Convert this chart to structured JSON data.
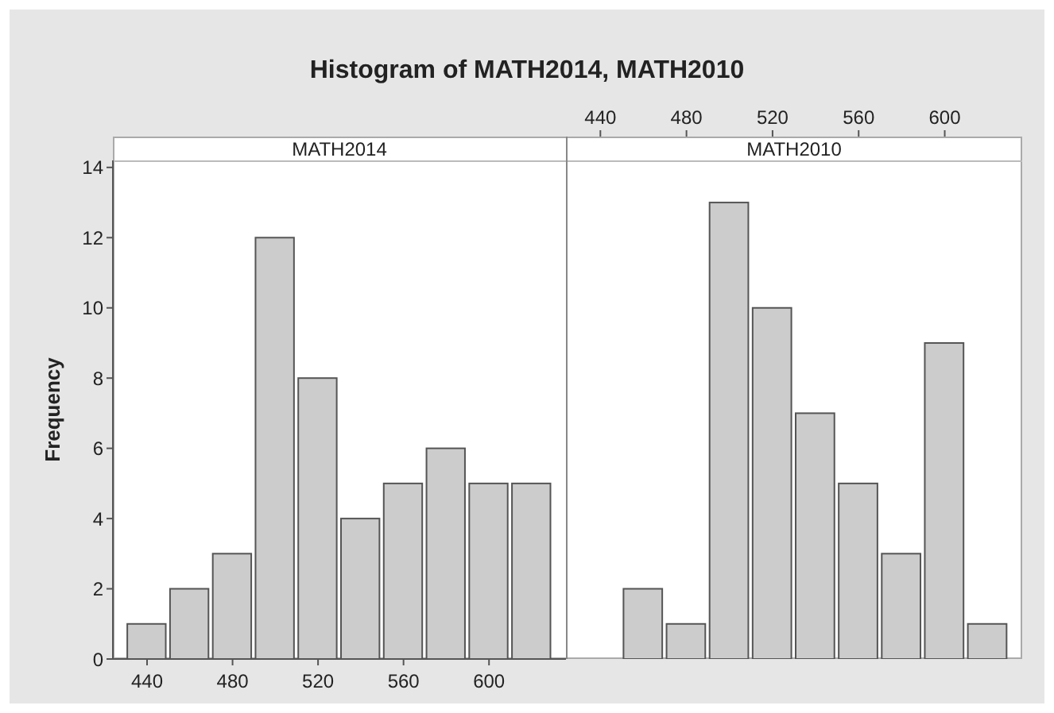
{
  "chart_data": [
    {
      "type": "histogram",
      "title": "Histogram of MATH2014, MATH2010",
      "subtitle": "MATH2014",
      "ylabel": "Frequency",
      "bins": [
        430,
        450,
        470,
        490,
        510,
        530,
        550,
        570,
        590,
        610,
        630
      ],
      "values": [
        1,
        2,
        3,
        12,
        8,
        4,
        5,
        6,
        5,
        5
      ],
      "color": "#cccccc",
      "xlim": [
        424,
        636
      ],
      "xticks": [
        440,
        480,
        520,
        560,
        600
      ],
      "ylim": [
        0,
        14.2
      ],
      "yticks": [
        0,
        2,
        4,
        6,
        8,
        10,
        12,
        14
      ]
    },
    {
      "type": "histogram",
      "subtitle": "MATH2010",
      "bins": [
        430,
        450,
        470,
        490,
        510,
        530,
        550,
        570,
        590,
        610,
        630
      ],
      "values": [
        0,
        2,
        1,
        13,
        10,
        7,
        5,
        3,
        9,
        1
      ],
      "color": "#cccccc",
      "xlim": [
        424,
        636
      ],
      "xticks": [
        440,
        480,
        520,
        560,
        600
      ],
      "ylim": [
        0,
        14.2
      ],
      "yticks": [
        0,
        2,
        4,
        6,
        8,
        10,
        12,
        14
      ],
      "tick_labels": "x"
    }
  ]
}
